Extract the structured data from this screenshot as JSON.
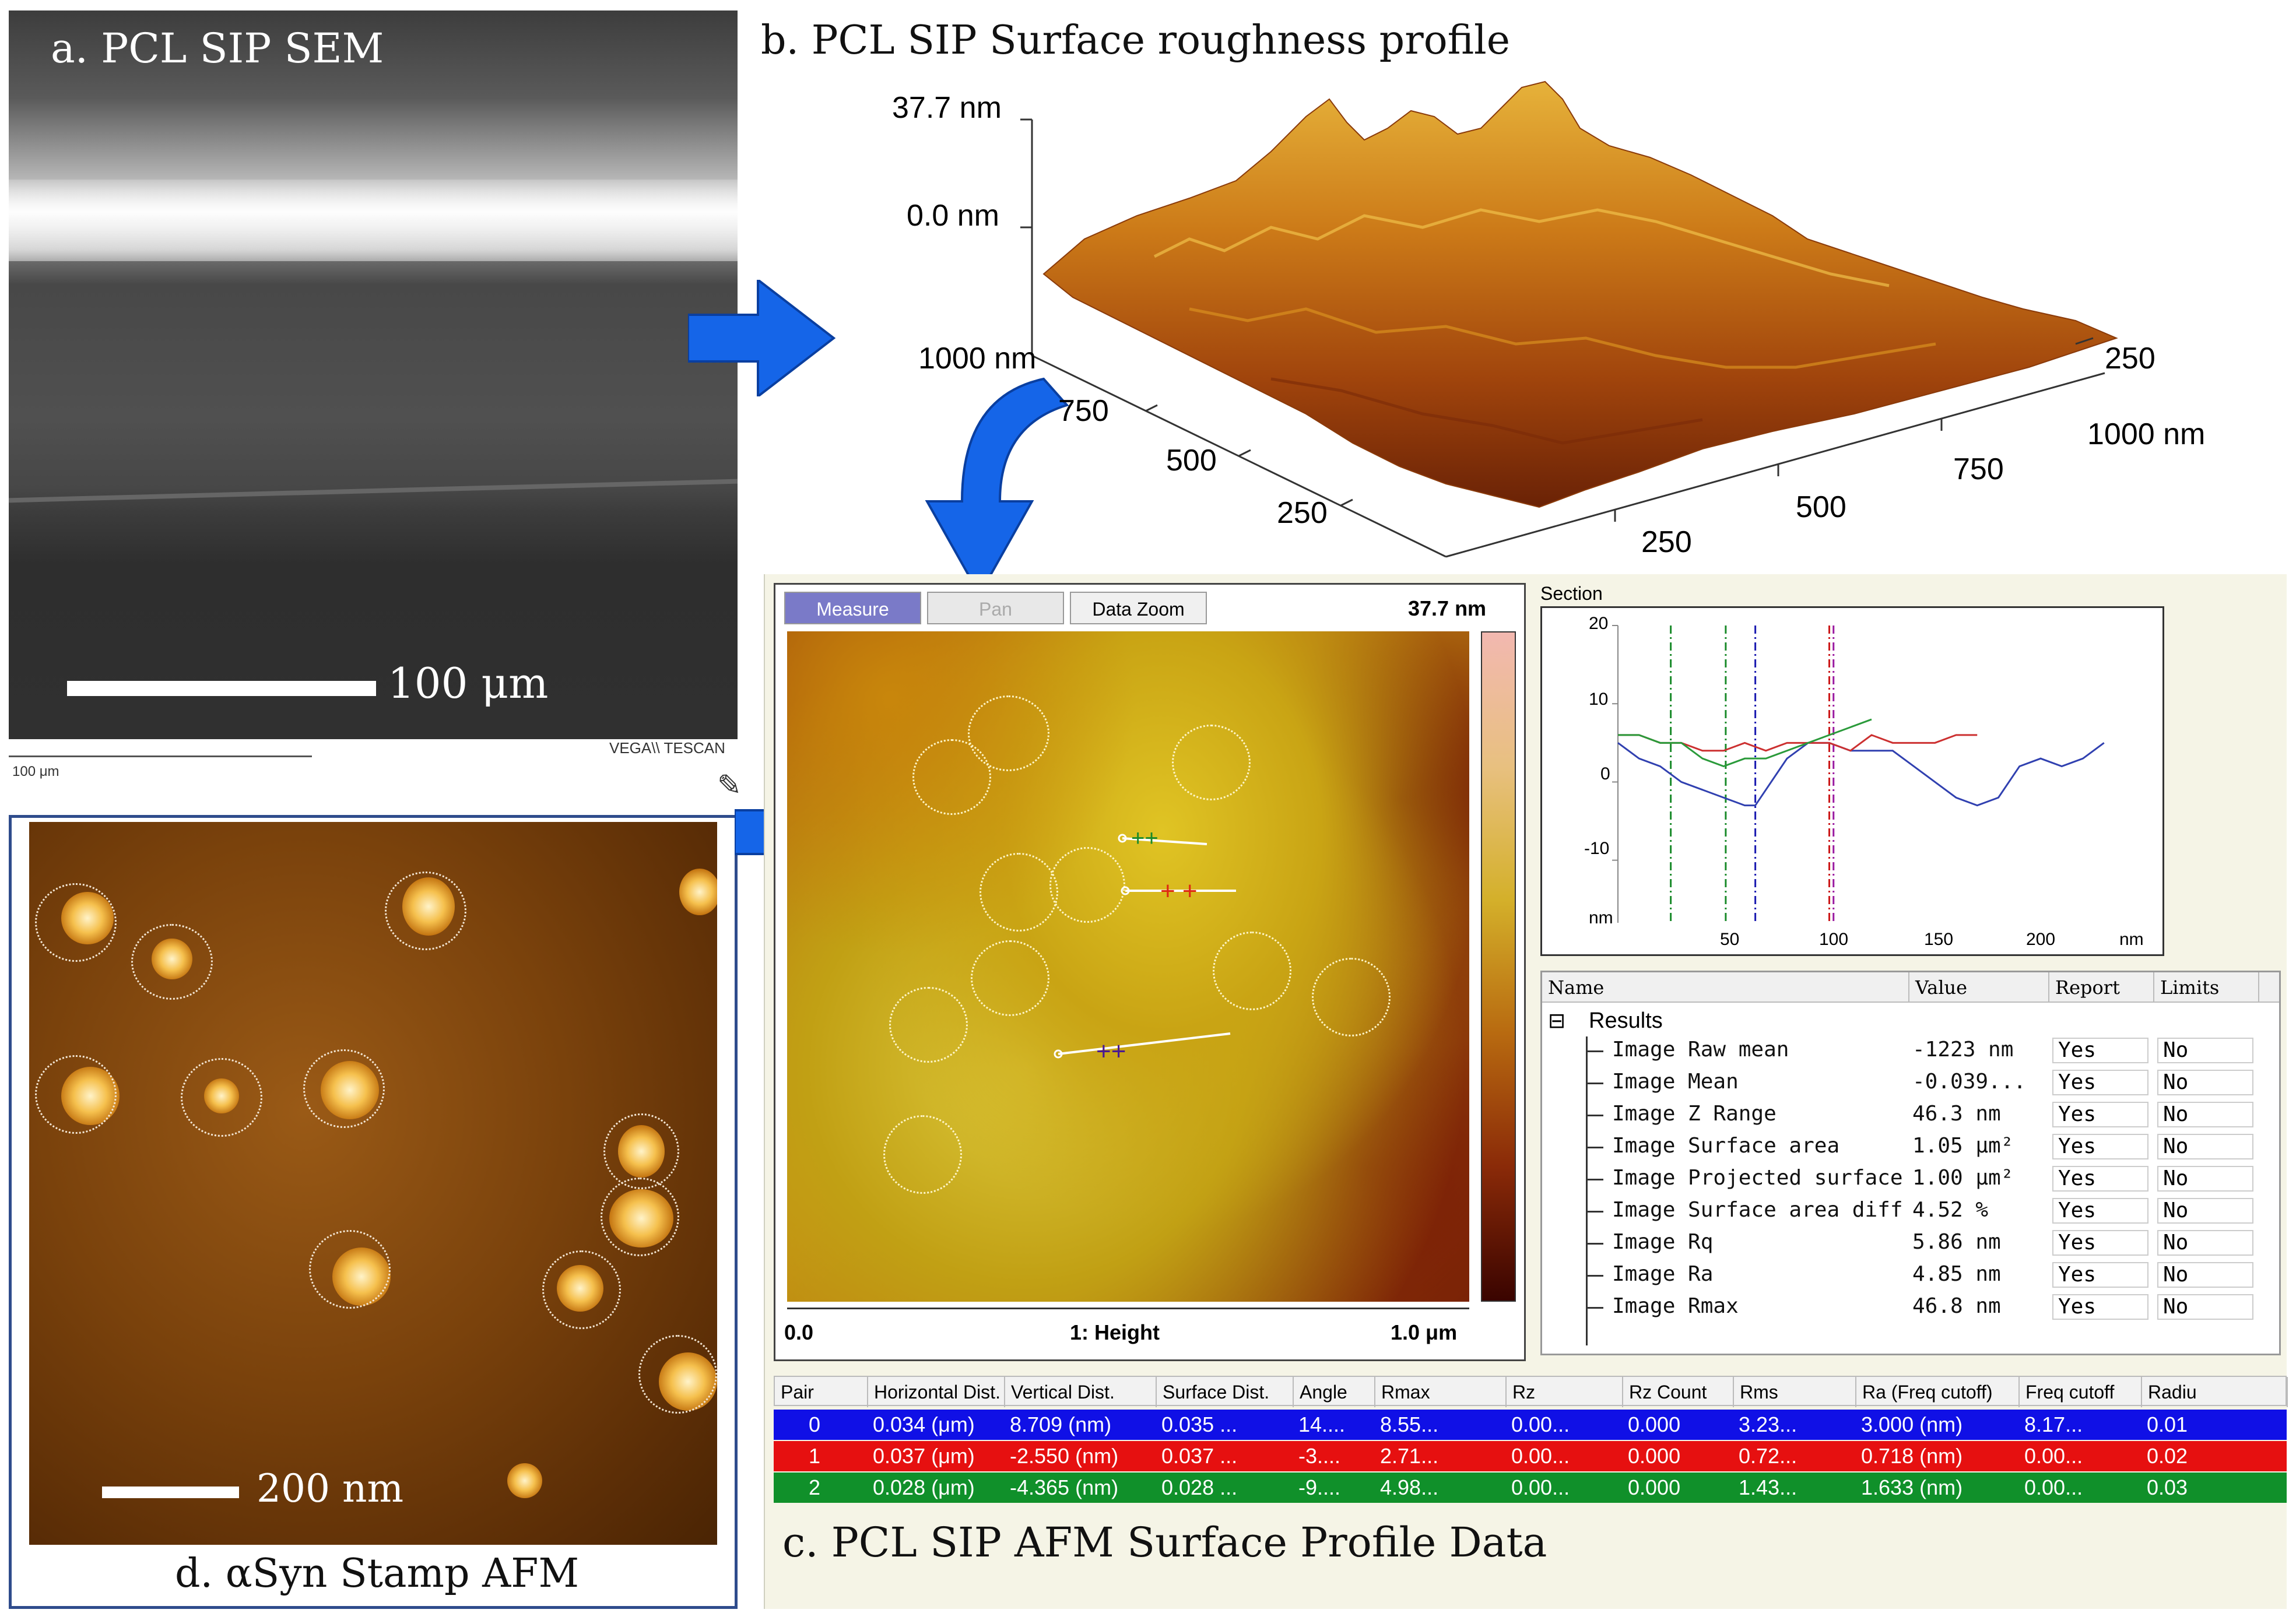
{
  "panel_a": {
    "caption": "a. PCL SIP SEM",
    "scale_label": "100 μm",
    "footer_scale": "100 μm",
    "brand": "VEGA\\\\ TESCAN"
  },
  "panel_b": {
    "title": "b. PCL SIP Surface roughness profile",
    "z_top": "37.7 nm",
    "z_zero": "0.0 nm",
    "axis_left": [
      "1000 nm",
      "750",
      "500",
      "250"
    ],
    "axis_right": [
      "250",
      "500",
      "750",
      "1000 nm"
    ],
    "axis_right_top": "250"
  },
  "panel_c": {
    "buttons": [
      "Measure",
      "Pan",
      "Data Zoom"
    ],
    "zmax": "37.7 nm",
    "x_start": "0.0",
    "channel": "1: Height",
    "x_end": "1.0 μm",
    "section_title": "Section",
    "section_y_ticks": [
      "20",
      "10",
      "0",
      "-10",
      "nm"
    ],
    "section_x_ticks": [
      "50",
      "100",
      "150",
      "200",
      "nm"
    ],
    "results_headers": [
      "Name",
      "Value",
      "Report",
      "Limits"
    ],
    "results_group": "Results",
    "results": [
      {
        "name": "Image Raw mean",
        "value": "-1223 nm",
        "report": "Yes",
        "limits": "No"
      },
      {
        "name": "Image Mean",
        "value": "-0.039...",
        "report": "Yes",
        "limits": "No"
      },
      {
        "name": "Image Z Range",
        "value": "46.3 nm",
        "report": "Yes",
        "limits": "No"
      },
      {
        "name": "Image Surface area",
        "value": "1.05 μm²",
        "report": "Yes",
        "limits": "No"
      },
      {
        "name": "Image Projected surface a",
        "value": "1.00 μm²",
        "report": "Yes",
        "limits": "No"
      },
      {
        "name": "Image Surface area differ",
        "value": "4.52 %",
        "report": "Yes",
        "limits": "No"
      },
      {
        "name": "Image Rq",
        "value": "5.86 nm",
        "report": "Yes",
        "limits": "No"
      },
      {
        "name": "Image Ra",
        "value": "4.85 nm",
        "report": "Yes",
        "limits": "No"
      },
      {
        "name": "Image Rmax",
        "value": "46.8 nm",
        "report": "Yes",
        "limits": "No"
      }
    ],
    "table_headers": [
      "Pair",
      "Horizontal Dist.",
      "Vertical Dist.",
      "Surface Dist.",
      "Angle",
      "Rmax",
      "Rz",
      "Rz Count",
      "Rms",
      "Ra (Freq cutoff)",
      "Freq cutoff",
      "Radiu"
    ],
    "table_rows": [
      {
        "color": "#1010e6",
        "cells": [
          "0",
          "0.034 (μm)",
          "8.709 (nm)",
          "0.035 ...",
          "14....",
          "8.55...",
          "0.00...",
          "0.000",
          "3.23...",
          "3.000 (nm)",
          "8.17...",
          "0.01"
        ]
      },
      {
        "color": "#e61010",
        "cells": [
          "1",
          "0.037 (μm)",
          "-2.550 (nm)",
          "0.037 ...",
          "-3....",
          "2.71...",
          "0.00...",
          "0.000",
          "0.72...",
          "0.718 (nm)",
          "0.00...",
          "0.02"
        ]
      },
      {
        "color": "#10902a",
        "cells": [
          "2",
          "0.028 (μm)",
          "-4.365 (nm)",
          "0.028 ...",
          "-9....",
          "4.98...",
          "0.00...",
          "0.000",
          "1.43...",
          "1.633 (nm)",
          "0.00...",
          "0.03"
        ]
      }
    ],
    "caption": "c. PCL SIP AFM Surface Profile Data"
  },
  "panel_d": {
    "scale_label": "200 nm",
    "caption": "d. αSyn Stamp AFM"
  },
  "chart_data": {
    "type": "line",
    "title": "Section",
    "xlabel": "nm",
    "ylabel": "nm",
    "xlim": [
      0,
      240
    ],
    "ylim": [
      -18,
      20
    ],
    "x_ticks": [
      50,
      100,
      150,
      200
    ],
    "y_ticks": [
      20,
      10,
      0,
      -10
    ],
    "cursor_lines": [
      {
        "x": 25,
        "color": "#1a8a2a"
      },
      {
        "x": 51,
        "color": "#1a8a2a"
      },
      {
        "x": 65,
        "color": "#1a1ab0"
      },
      {
        "x": 100,
        "color": "#cc1a1a"
      },
      {
        "x": 102,
        "color": "#9a1aa0"
      }
    ],
    "series": [
      {
        "color": "#3040b0",
        "x": [
          0,
          10,
          20,
          30,
          40,
          50,
          60,
          65,
          70,
          80,
          90,
          100,
          110,
          120,
          130,
          140,
          150,
          160,
          170,
          180,
          190,
          200,
          210,
          220,
          230
        ],
        "values": [
          5,
          3,
          2,
          0,
          -1,
          -2,
          -3,
          -3,
          -1,
          3,
          5,
          5,
          4,
          4,
          4,
          2,
          0,
          -2,
          -3,
          -2,
          2,
          3,
          2,
          3,
          5
        ]
      },
      {
        "color": "#cc3030",
        "x": [
          0,
          10,
          20,
          30,
          40,
          50,
          60,
          70,
          80,
          90,
          100,
          110,
          120,
          130,
          140,
          150,
          160,
          170
        ],
        "values": [
          6,
          6,
          5,
          5,
          4,
          4,
          5,
          4,
          5,
          5,
          5,
          4,
          6,
          5,
          5,
          5,
          6,
          6
        ]
      },
      {
        "color": "#2a9a3a",
        "x": [
          0,
          10,
          20,
          30,
          40,
          50,
          60,
          70,
          80,
          90,
          100,
          110,
          120
        ],
        "values": [
          6,
          6,
          5,
          5,
          3,
          2,
          3,
          3,
          4,
          5,
          6,
          7,
          8
        ]
      }
    ]
  }
}
